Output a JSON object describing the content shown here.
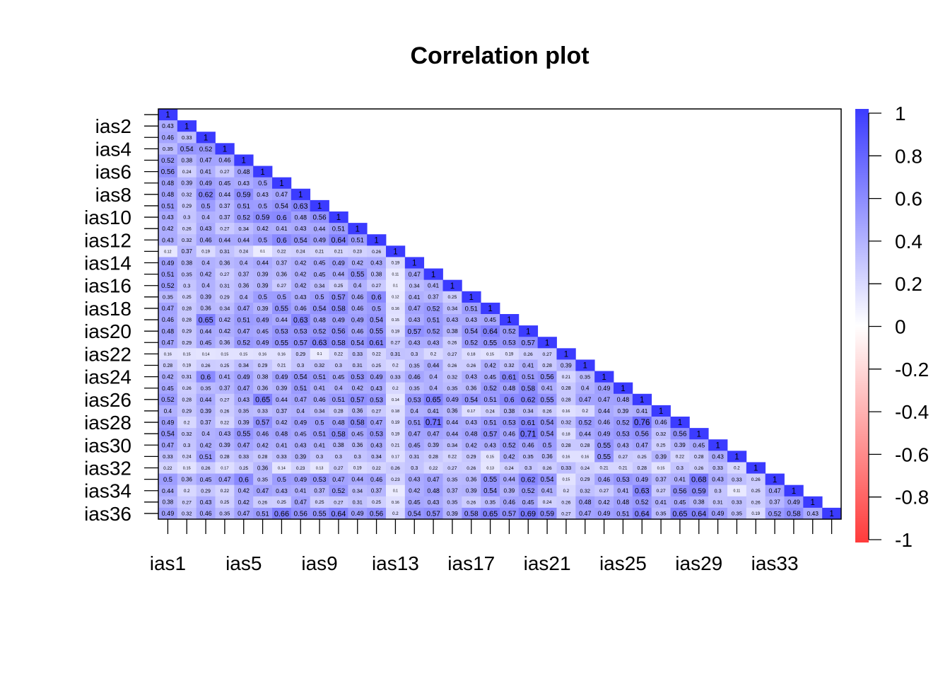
{
  "chart_data": {
    "type": "heatmap",
    "subtype": "lower-triangle correlation matrix",
    "title": "Correlation plot",
    "variables": [
      "ias1",
      "ias2",
      "ias3",
      "ias4",
      "ias5",
      "ias6",
      "ias7",
      "ias8",
      "ias9",
      "ias10",
      "ias11",
      "ias12",
      "ias13",
      "ias14",
      "ias15",
      "ias16",
      "ias17",
      "ias18",
      "ias19",
      "ias20",
      "ias21",
      "ias22",
      "ias23",
      "ias24",
      "ias25",
      "ias26",
      "ias27",
      "ias28",
      "ias29",
      "ias30",
      "ias31",
      "ias32",
      "ias33",
      "ias34",
      "ias35",
      "ias36"
    ],
    "y_tick_labels": [
      "ias2",
      "ias4",
      "ias6",
      "ias8",
      "ias10",
      "ias12",
      "ias14",
      "ias16",
      "ias18",
      "ias20",
      "ias22",
      "ias24",
      "ias26",
      "ias28",
      "ias30",
      "ias32",
      "ias34",
      "ias36"
    ],
    "x_tick_labels": [
      "ias1",
      "ias5",
      "ias9",
      "ias13",
      "ias17",
      "ias21",
      "ias25",
      "ias29",
      "ias33"
    ],
    "values": [
      [
        1
      ],
      [
        0.43,
        1
      ],
      [
        0.46,
        0.33,
        1
      ],
      [
        0.35,
        0.54,
        0.52,
        1
      ],
      [
        0.52,
        0.38,
        0.47,
        0.46,
        1
      ],
      [
        0.56,
        0.24,
        0.41,
        0.27,
        0.48,
        1
      ],
      [
        0.48,
        0.39,
        0.49,
        0.45,
        0.43,
        0.5,
        1
      ],
      [
        0.48,
        0.32,
        0.62,
        0.44,
        0.59,
        0.43,
        0.47,
        1
      ],
      [
        0.51,
        0.29,
        0.5,
        0.37,
        0.51,
        0.5,
        0.54,
        0.63,
        1
      ],
      [
        0.43,
        0.3,
        0.4,
        0.37,
        0.52,
        0.59,
        0.6,
        0.48,
        0.56,
        1
      ],
      [
        0.42,
        0.26,
        0.43,
        0.27,
        0.34,
        0.42,
        0.41,
        0.43,
        0.44,
        0.51,
        1
      ],
      [
        0.43,
        0.32,
        0.46,
        0.44,
        0.44,
        0.5,
        0.6,
        0.54,
        0.49,
        0.64,
        0.51,
        1
      ],
      [
        0.12,
        0.37,
        0.19,
        0.31,
        0.24,
        0.1,
        0.22,
        0.24,
        0.21,
        0.21,
        0.23,
        0.26,
        1
      ],
      [
        0.49,
        0.38,
        0.4,
        0.36,
        0.4,
        0.44,
        0.37,
        0.42,
        0.45,
        0.49,
        0.42,
        0.43,
        0.19,
        1
      ],
      [
        0.51,
        0.35,
        0.42,
        0.27,
        0.37,
        0.39,
        0.36,
        0.42,
        0.45,
        0.44,
        0.55,
        0.38,
        0.11,
        0.47,
        1
      ],
      [
        0.52,
        0.3,
        0.4,
        0.31,
        0.36,
        0.39,
        0.27,
        0.42,
        0.34,
        0.25,
        0.4,
        0.27,
        0.1,
        0.34,
        0.41,
        1
      ],
      [
        0.35,
        0.25,
        0.39,
        0.29,
        0.4,
        0.5,
        0.5,
        0.43,
        0.5,
        0.57,
        0.46,
        0.6,
        0.12,
        0.41,
        0.37,
        0.25,
        1
      ],
      [
        0.47,
        0.28,
        0.36,
        0.34,
        0.47,
        0.39,
        0.55,
        0.46,
        0.54,
        0.58,
        0.46,
        0.5,
        0.16,
        0.47,
        0.52,
        0.34,
        0.51,
        1
      ],
      [
        0.46,
        0.28,
        0.65,
        0.42,
        0.51,
        0.49,
        0.44,
        0.63,
        0.48,
        0.49,
        0.49,
        0.54,
        0.15,
        0.43,
        0.51,
        0.43,
        0.43,
        0.45,
        1
      ],
      [
        0.48,
        0.29,
        0.44,
        0.42,
        0.47,
        0.45,
        0.53,
        0.53,
        0.52,
        0.56,
        0.46,
        0.55,
        0.19,
        0.57,
        0.52,
        0.38,
        0.54,
        0.64,
        0.52,
        1
      ],
      [
        0.47,
        0.29,
        0.45,
        0.36,
        0.52,
        0.49,
        0.55,
        0.57,
        0.63,
        0.58,
        0.54,
        0.61,
        0.27,
        0.43,
        0.43,
        0.26,
        0.52,
        0.55,
        0.53,
        0.57,
        1
      ],
      [
        0.16,
        0.15,
        0.14,
        0.15,
        0.15,
        0.16,
        0.16,
        0.29,
        0.1,
        0.22,
        0.33,
        0.22,
        0.31,
        0.3,
        0.2,
        0.27,
        0.18,
        0.15,
        0.19,
        0.26,
        0.27,
        1
      ],
      [
        0.28,
        0.19,
        0.26,
        0.25,
        0.34,
        0.29,
        0.21,
        0.3,
        0.32,
        0.3,
        0.31,
        0.25,
        0.2,
        0.35,
        0.44,
        0.26,
        0.26,
        0.42,
        0.32,
        0.41,
        0.28,
        0.39,
        1
      ],
      [
        0.42,
        0.31,
        0.6,
        0.41,
        0.49,
        0.38,
        0.49,
        0.54,
        0.51,
        0.45,
        0.53,
        0.49,
        0.33,
        0.46,
        0.4,
        0.32,
        0.43,
        0.45,
        0.61,
        0.51,
        0.56,
        0.21,
        0.35,
        1
      ],
      [
        0.45,
        0.26,
        0.35,
        0.37,
        0.47,
        0.36,
        0.39,
        0.51,
        0.41,
        0.4,
        0.42,
        0.43,
        0.2,
        0.35,
        0.4,
        0.35,
        0.36,
        0.52,
        0.48,
        0.58,
        0.41,
        0.28,
        0.4,
        0.49,
        1
      ],
      [
        0.52,
        0.28,
        0.44,
        0.27,
        0.43,
        0.65,
        0.44,
        0.47,
        0.46,
        0.51,
        0.57,
        0.53,
        0.14,
        0.53,
        0.65,
        0.49,
        0.54,
        0.51,
        0.6,
        0.62,
        0.55,
        0.28,
        0.47,
        0.47,
        0.48,
        1
      ],
      [
        0.4,
        0.29,
        0.39,
        0.26,
        0.35,
        0.33,
        0.37,
        0.4,
        0.34,
        0.28,
        0.36,
        0.27,
        0.18,
        0.4,
        0.41,
        0.36,
        0.17,
        0.24,
        0.38,
        0.34,
        0.26,
        0.16,
        0.2,
        0.44,
        0.39,
        0.41,
        1
      ],
      [
        0.49,
        0.2,
        0.37,
        0.22,
        0.39,
        0.57,
        0.42,
        0.49,
        0.5,
        0.48,
        0.58,
        0.47,
        0.19,
        0.51,
        0.71,
        0.44,
        0.43,
        0.51,
        0.53,
        0.61,
        0.54,
        0.32,
        0.52,
        0.46,
        0.52,
        0.76,
        0.46,
        1
      ],
      [
        0.54,
        0.32,
        0.4,
        0.43,
        0.55,
        0.46,
        0.48,
        0.45,
        0.51,
        0.58,
        0.45,
        0.53,
        0.19,
        0.47,
        0.47,
        0.44,
        0.48,
        0.57,
        0.46,
        0.71,
        0.54,
        0.18,
        0.44,
        0.49,
        0.53,
        0.56,
        0.32,
        0.56,
        1
      ],
      [
        0.47,
        0.3,
        0.42,
        0.39,
        0.47,
        0.42,
        0.41,
        0.43,
        0.41,
        0.38,
        0.36,
        0.43,
        0.21,
        0.45,
        0.39,
        0.34,
        0.42,
        0.43,
        0.52,
        0.46,
        0.5,
        0.28,
        0.28,
        0.55,
        0.43,
        0.47,
        0.25,
        0.39,
        0.45,
        1
      ],
      [
        0.33,
        0.24,
        0.51,
        0.28,
        0.33,
        0.28,
        0.33,
        0.39,
        0.3,
        0.3,
        0.3,
        0.34,
        0.17,
        0.31,
        0.28,
        0.22,
        0.29,
        0.15,
        0.42,
        0.35,
        0.36,
        0.16,
        0.16,
        0.55,
        0.27,
        0.25,
        0.39,
        0.22,
        0.28,
        0.43,
        1
      ],
      [
        0.22,
        0.15,
        0.26,
        0.17,
        0.25,
        0.36,
        0.14,
        0.23,
        0.13,
        0.27,
        0.19,
        0.22,
        0.26,
        0.3,
        0.22,
        0.27,
        0.26,
        0.13,
        0.24,
        0.3,
        0.26,
        0.33,
        0.24,
        0.21,
        0.21,
        0.28,
        0.15,
        0.3,
        0.26,
        0.33,
        0.2,
        1
      ],
      [
        0.5,
        0.36,
        0.45,
        0.47,
        0.6,
        0.35,
        0.5,
        0.49,
        0.53,
        0.47,
        0.44,
        0.46,
        0.23,
        0.43,
        0.47,
        0.35,
        0.36,
        0.55,
        0.44,
        0.62,
        0.54,
        0.15,
        0.29,
        0.46,
        0.53,
        0.49,
        0.37,
        0.41,
        0.68,
        0.43,
        0.33,
        0.26,
        1
      ],
      [
        0.44,
        0.2,
        0.29,
        0.22,
        0.42,
        0.47,
        0.43,
        0.41,
        0.37,
        0.52,
        0.34,
        0.37,
        0.1,
        0.42,
        0.48,
        0.37,
        0.39,
        0.54,
        0.39,
        0.52,
        0.41,
        0.2,
        0.32,
        0.27,
        0.41,
        0.63,
        0.27,
        0.56,
        0.59,
        0.3,
        0.11,
        0.25,
        0.47,
        1
      ],
      [
        0.38,
        0.27,
        0.43,
        0.25,
        0.42,
        0.26,
        0.25,
        0.47,
        0.25,
        0.27,
        0.31,
        0.25,
        0.16,
        0.45,
        0.43,
        0.35,
        0.26,
        0.35,
        0.46,
        0.45,
        0.24,
        0.26,
        0.48,
        0.42,
        0.48,
        0.52,
        0.41,
        0.45,
        0.38,
        0.31,
        0.33,
        0.26,
        0.37,
        0.49,
        1
      ],
      [
        0.49,
        0.32,
        0.46,
        0.35,
        0.47,
        0.51,
        0.66,
        0.56,
        0.55,
        0.64,
        0.49,
        0.56,
        0.2,
        0.54,
        0.57,
        0.39,
        0.58,
        0.65,
        0.57,
        0.69,
        0.59,
        0.27,
        0.47,
        0.49,
        0.51,
        0.64,
        0.35,
        0.65,
        0.64,
        0.49,
        0.35,
        0.19,
        0.52,
        0.58,
        0.43,
        1
      ]
    ],
    "color_scale": {
      "min": -1,
      "max": 1,
      "low_color": "#FF3B3B",
      "mid_color": "#FFFFFF",
      "high_color": "#3B3BFF"
    },
    "colorbar_ticks": [
      "1",
      "0.8",
      "0.6",
      "0.4",
      "0.2",
      "0",
      "-0.2",
      "-0.4",
      "-0.6",
      "-0.8",
      "-1"
    ]
  }
}
